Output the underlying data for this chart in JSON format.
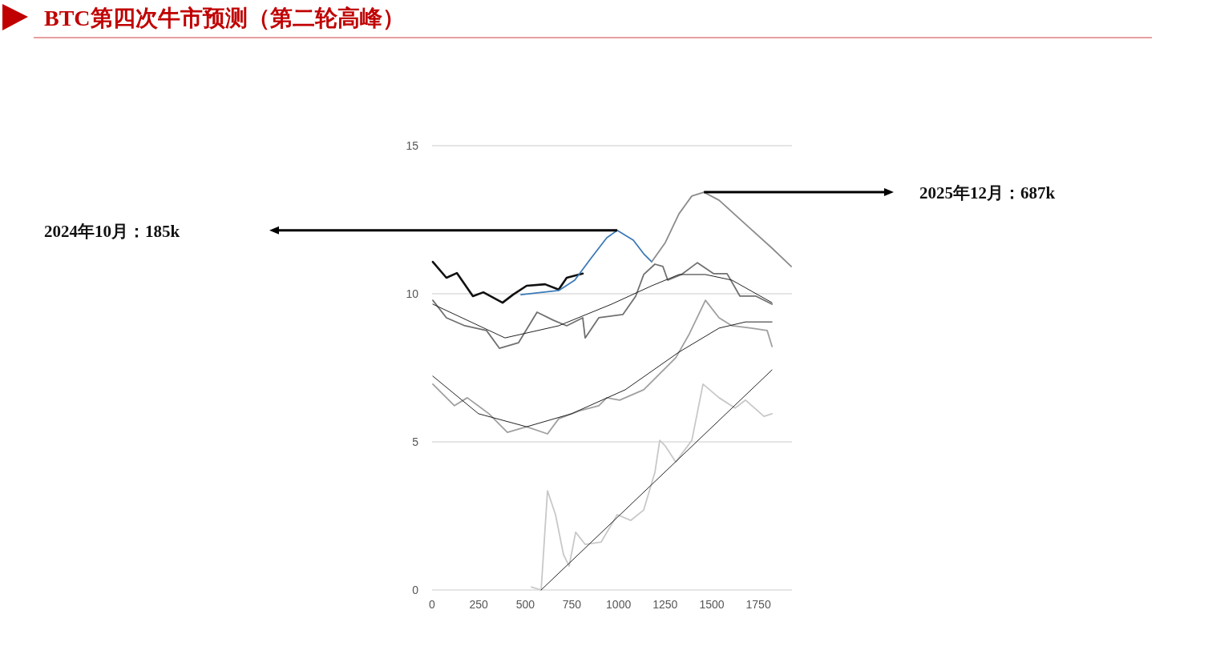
{
  "chart_data": {
    "type": "line",
    "title": "BTC第四次牛市预测（第二轮高峰）",
    "xlim": [
      0,
      1930
    ],
    "ylim": [
      0,
      15
    ],
    "xticks": [
      0,
      250,
      500,
      750,
      1000,
      1250,
      1500,
      1750
    ],
    "yticks": [
      0,
      5,
      10,
      15
    ],
    "grid": "y",
    "annotations": [
      "2024年10月：185k",
      "2025年12月：687k"
    ],
    "series": [
      {
        "color": "#c8c8c8",
        "x": [
          533,
          585,
          619,
          662,
          705,
          735,
          770,
          821,
          907,
          993,
          1066,
          1135,
          1195,
          1221,
          1251,
          1307,
          1393,
          1453,
          1539,
          1625,
          1681,
          1780,
          1823
        ],
        "values": [
          0.1,
          0,
          3.35,
          2.54,
          1.19,
          0.81,
          1.95,
          1.54,
          1.62,
          2.54,
          2.35,
          2.7,
          3.97,
          5.05,
          4.86,
          4.32,
          5.05,
          6.95,
          6.49,
          6.14,
          6.41,
          5.86,
          5.95
        ]
      },
      {
        "color": "#222222",
        "x": [
          585,
          1823
        ],
        "values": [
          0,
          7.43
        ]
      },
      {
        "color": "#a0a0a0",
        "x": [
          4,
          120,
          189,
          305,
          404,
          507,
          619,
          679,
          791,
          894,
          937,
          1006,
          1135,
          1221,
          1307,
          1380,
          1466,
          1539,
          1608,
          1711,
          1797,
          1823
        ],
        "values": [
          6.95,
          6.22,
          6.49,
          5.95,
          5.32,
          5.51,
          5.27,
          5.78,
          6.05,
          6.22,
          6.49,
          6.41,
          6.76,
          7.3,
          7.84,
          8.65,
          9.78,
          9.19,
          8.92,
          8.84,
          8.76,
          8.22
        ]
      },
      {
        "color": "#222222",
        "x": [
          4,
          249,
          507,
          748,
          1036,
          1324,
          1539,
          1681,
          1823
        ],
        "values": [
          7.22,
          5.95,
          5.51,
          5.95,
          6.76,
          8.03,
          8.84,
          9.05,
          9.05
        ]
      },
      {
        "color": "#707070",
        "x": [
          4,
          77,
          176,
          292,
          361,
          464,
          563,
          649,
          722,
          808,
          821,
          894,
          1023,
          1092,
          1135,
          1195,
          1238,
          1264,
          1337,
          1423,
          1509,
          1582,
          1651,
          1737,
          1823
        ],
        "values": [
          9.78,
          9.19,
          8.92,
          8.76,
          8.16,
          8.35,
          9.38,
          9.11,
          8.92,
          9.19,
          8.51,
          9.19,
          9.3,
          9.92,
          10.65,
          11.0,
          10.92,
          10.46,
          10.65,
          11.05,
          10.68,
          10.68,
          9.92,
          9.92,
          9.65
        ]
      },
      {
        "color": "#222222",
        "x": [
          4,
          391,
          679,
          963,
          1178,
          1324,
          1466,
          1608,
          1823
        ],
        "values": [
          9.65,
          8.51,
          8.92,
          9.65,
          10.27,
          10.65,
          10.65,
          10.46,
          9.7
        ]
      },
      {
        "color": "#111111",
        "x": [
          4,
          77,
          133,
          219,
          275,
          378,
          434,
          507,
          606,
          679,
          722,
          808
        ],
        "values": [
          11.08,
          10.54,
          10.7,
          9.92,
          10.05,
          9.7,
          9.97,
          10.27,
          10.32,
          10.14,
          10.54,
          10.68
        ]
      },
      {
        "color": "#3a7ab8",
        "x": [
          477,
          679,
          765,
          851,
          937,
          993,
          1079,
          1135,
          1178
        ],
        "values": [
          9.97,
          10.11,
          10.46,
          11.19,
          11.89,
          12.14,
          11.81,
          11.35,
          11.08
        ]
      },
      {
        "color": "#8c8c8c",
        "x": [
          1178,
          1251,
          1324,
          1393,
          1458,
          1539,
          1681,
          1823,
          1926
        ],
        "values": [
          11.08,
          11.73,
          12.7,
          13.3,
          13.43,
          13.16,
          12.35,
          11.54,
          10.92
        ]
      }
    ]
  }
}
